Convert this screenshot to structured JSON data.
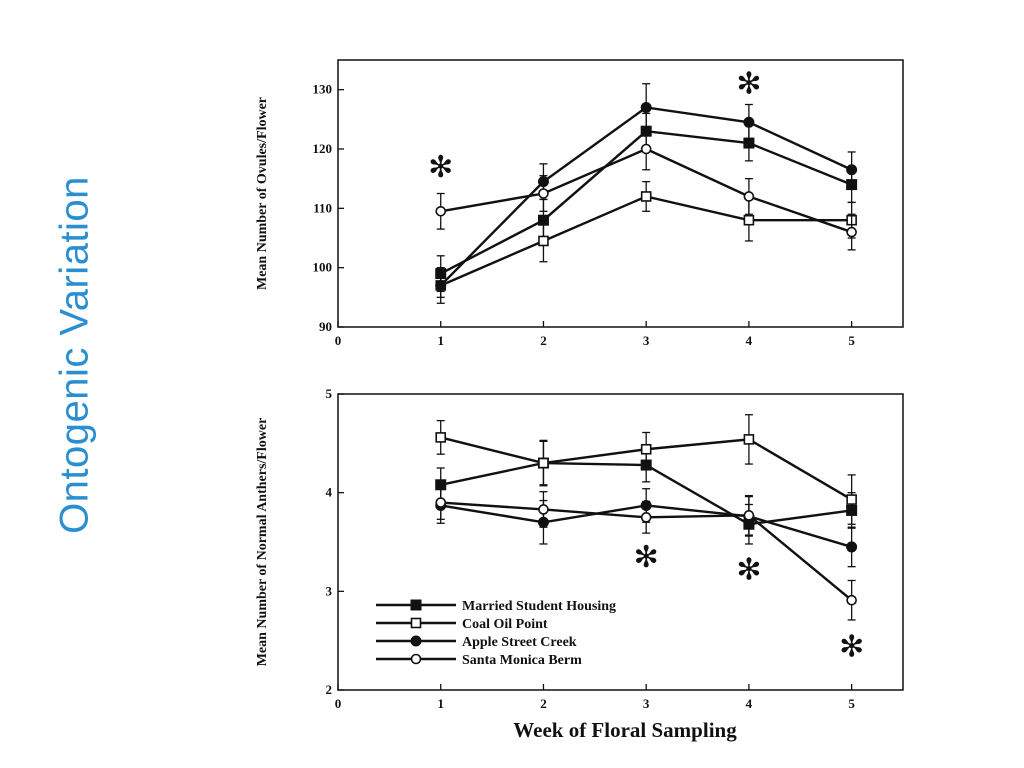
{
  "slide": {
    "title": "Ontogenic Variation",
    "title_color": "#2a8fd0"
  },
  "chart_data": [
    {
      "type": "line",
      "ylabel": "Mean Number of Ovules/Flower",
      "xlim": [
        0,
        5.5
      ],
      "ylim": [
        90,
        135
      ],
      "x_ticks": [
        0,
        1,
        2,
        3,
        4,
        5
      ],
      "y_ticks": [
        90,
        100,
        110,
        120,
        130
      ],
      "grid": false,
      "x": [
        1,
        2,
        3,
        4,
        5
      ],
      "series": [
        {
          "name": "Married Student Housing",
          "marker": "filled-square",
          "values": [
            99,
            108,
            123,
            121,
            114
          ],
          "errors": [
            3,
            3.5,
            3,
            3,
            3
          ]
        },
        {
          "name": "Coal Oil Point",
          "marker": "open-square",
          "values": [
            97,
            104.5,
            112,
            108,
            108
          ],
          "errors": [
            2,
            3.5,
            2.5,
            3.5,
            3
          ]
        },
        {
          "name": "Apple Street Creek",
          "marker": "filled-circle",
          "values": [
            97,
            114.5,
            127,
            124.5,
            116.5
          ],
          "errors": [
            3,
            3,
            4,
            3,
            3
          ]
        },
        {
          "name": "Santa Monica Berm",
          "marker": "open-circle",
          "values": [
            109.5,
            112.5,
            120,
            112,
            106
          ],
          "errors": [
            3,
            3,
            3.5,
            3,
            3
          ]
        }
      ],
      "annotations": [
        {
          "text": "✻",
          "x": 1,
          "y": 117
        },
        {
          "text": "✻",
          "x": 4,
          "y": 131
        }
      ]
    },
    {
      "type": "line",
      "ylabel": "Mean Number of Normal Anthers/Flower",
      "xlabel": "Week of Floral Sampling",
      "xlim": [
        0,
        5.5
      ],
      "ylim": [
        2,
        5
      ],
      "x_ticks": [
        0,
        1,
        2,
        3,
        4,
        5
      ],
      "y_ticks": [
        2,
        3,
        4,
        5
      ],
      "grid": false,
      "legend_position": "bottom-left",
      "x": [
        1,
        2,
        3,
        4,
        5
      ],
      "series": [
        {
          "name": "Married Student Housing",
          "marker": "filled-square",
          "values": [
            4.08,
            4.3,
            4.28,
            3.68,
            3.82
          ],
          "errors": [
            0.17,
            0.22,
            0.17,
            0.2,
            0.18
          ]
        },
        {
          "name": "Coal Oil Point",
          "marker": "open-square",
          "values": [
            4.56,
            4.3,
            4.44,
            4.54,
            3.93
          ],
          "errors": [
            0.17,
            0.23,
            0.17,
            0.25,
            0.25
          ]
        },
        {
          "name": "Apple Street Creek",
          "marker": "filled-circle",
          "values": [
            3.87,
            3.7,
            3.87,
            3.76,
            3.45
          ],
          "errors": [
            0.18,
            0.22,
            0.17,
            0.2,
            0.2
          ]
        },
        {
          "name": "Santa Monica Berm",
          "marker": "open-circle",
          "values": [
            3.9,
            3.83,
            3.75,
            3.77,
            2.91
          ],
          "errors": [
            0.17,
            0.18,
            0.16,
            0.2,
            0.2
          ]
        }
      ],
      "annotations": [
        {
          "text": "✻",
          "x": 3,
          "y": 3.35
        },
        {
          "text": "✻",
          "x": 4,
          "y": 3.22
        },
        {
          "text": "✻",
          "x": 5,
          "y": 2.44
        }
      ]
    }
  ]
}
